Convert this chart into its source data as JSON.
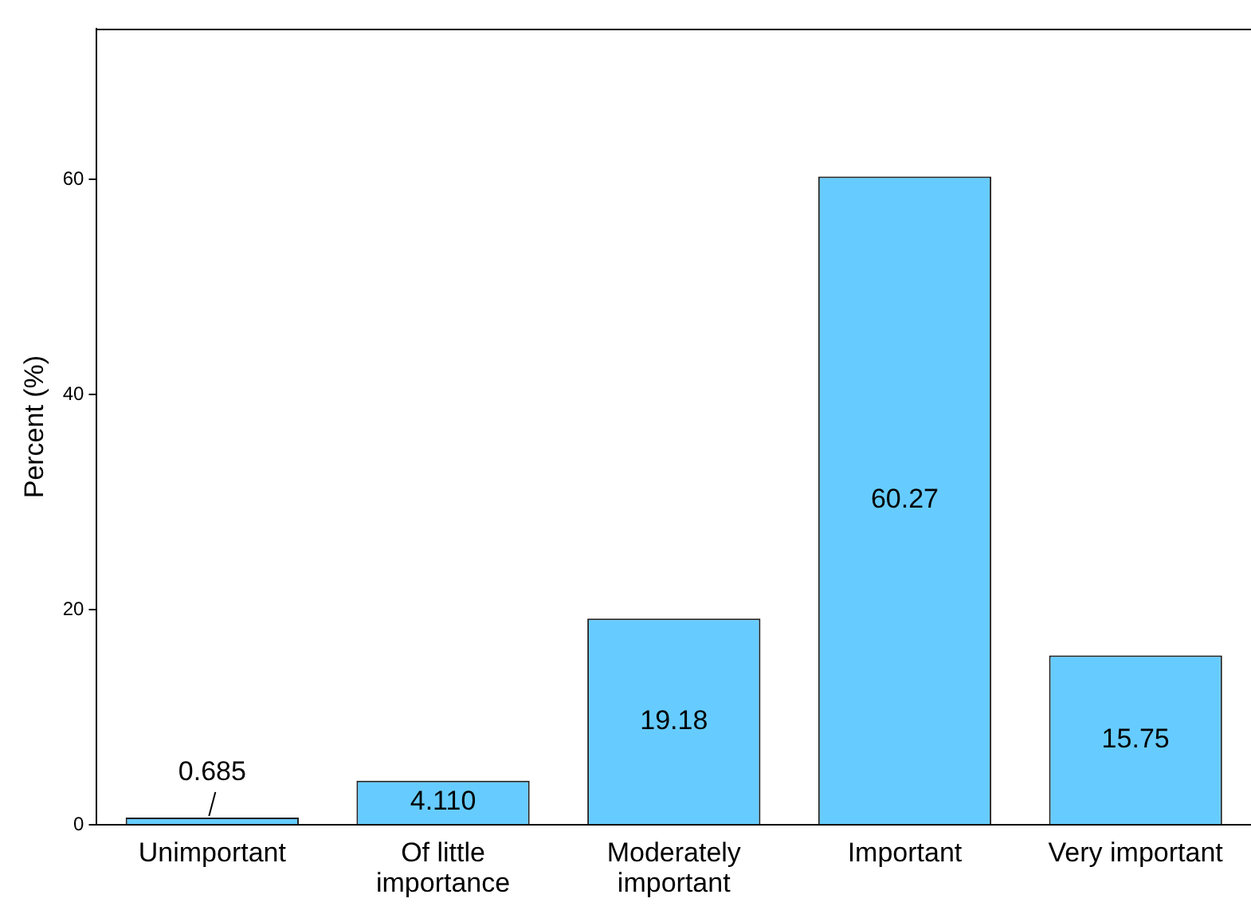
{
  "chart_data": {
    "type": "bar",
    "ylabel": "Percent (%)",
    "categories": [
      "Unimportant",
      "Of little importance",
      "Moderately important",
      "Important",
      "Very important"
    ],
    "values": [
      0.685,
      4.11,
      19.18,
      60.27,
      15.75
    ],
    "value_labels": [
      "0.685",
      "4.110",
      "19.18",
      "60.27",
      "15.75"
    ],
    "color": "#66ccff",
    "ylim": [
      0,
      74
    ],
    "yticks": [
      0,
      20,
      40,
      60
    ],
    "grid": false,
    "legend": false
  }
}
